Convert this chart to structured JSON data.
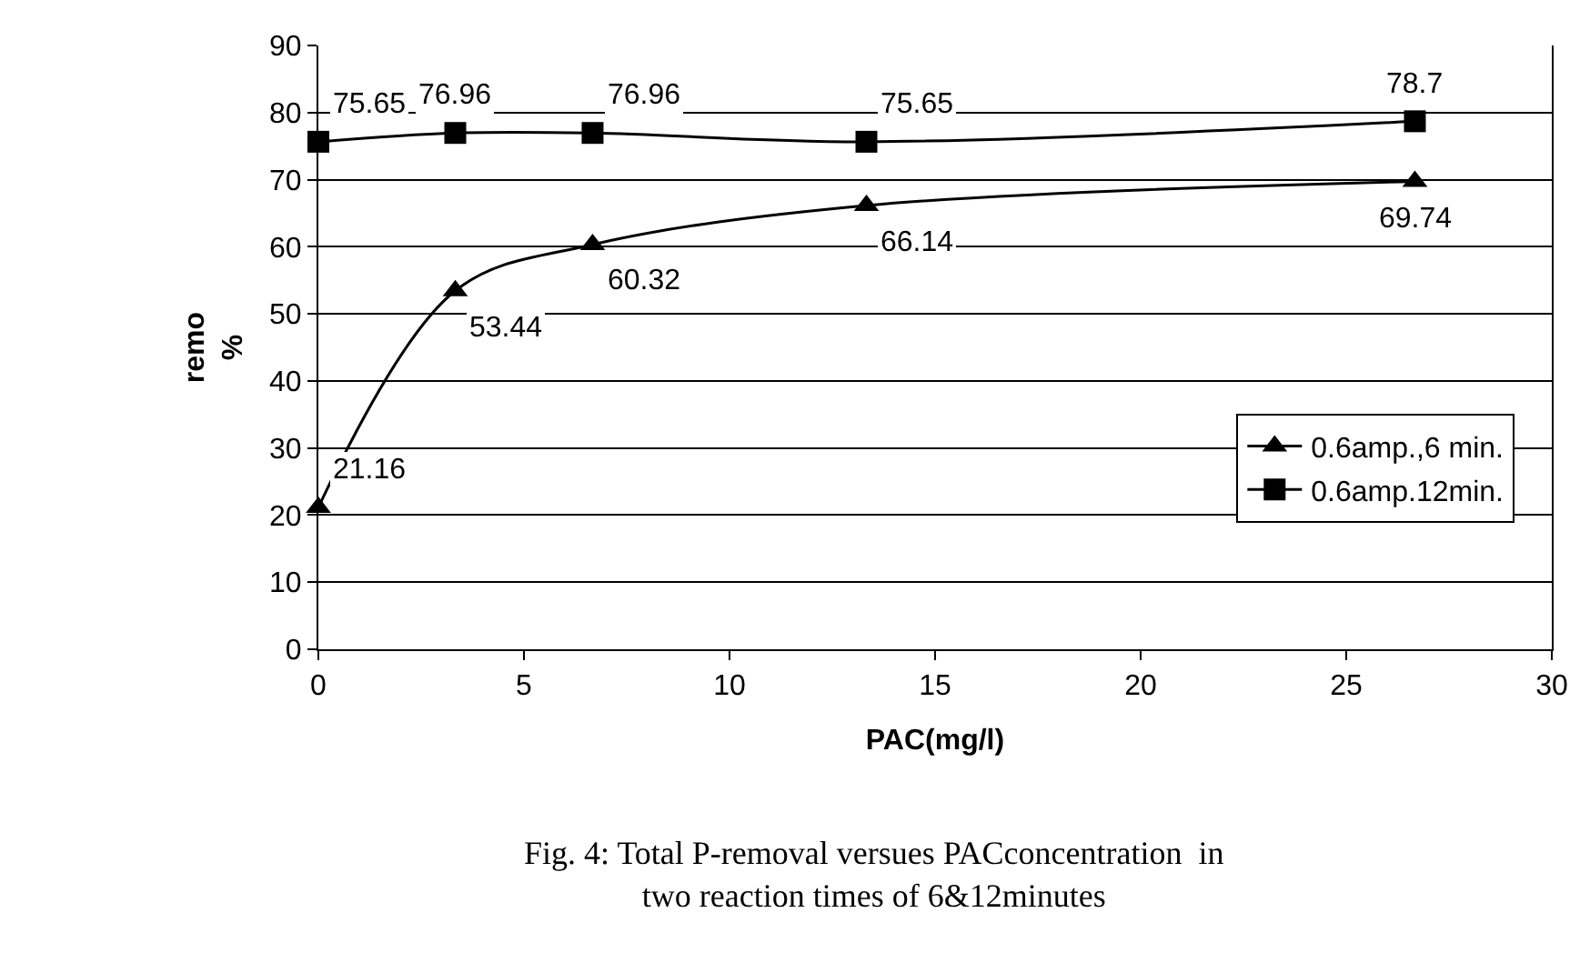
{
  "chart_data": {
    "type": "line",
    "xlabel": "PAC(mg/l)",
    "ylabel": "remo\n%",
    "xlim": [
      0,
      30
    ],
    "xticks": [
      0,
      5,
      10,
      15,
      20,
      25,
      30
    ],
    "ylim": [
      0,
      90
    ],
    "yticks": [
      0,
      10,
      20,
      30,
      40,
      50,
      60,
      70,
      80,
      90
    ],
    "grid": "y",
    "legend": "right",
    "line_style": "solid",
    "x": [
      0,
      3.33,
      6.67,
      13.33,
      26.67
    ],
    "series": [
      {
        "name": "0.6amp.,6 min.",
        "color": "#000000",
        "marker": "triangle",
        "values": [
          21.16,
          53.44,
          60.32,
          66.14,
          69.74
        ],
        "value_labels": [
          "21.16",
          "53.44",
          "60.32",
          "66.14",
          "69.74"
        ]
      },
      {
        "name": "0.6amp.12min.",
        "color": "#000000",
        "marker": "square",
        "values": [
          75.65,
          76.96,
          76.96,
          75.65,
          78.7
        ],
        "value_labels": [
          "75.65",
          "76.96",
          "76.96",
          "75.65",
          "78.7"
        ]
      }
    ],
    "annotations": [
      "Fig. 4: Total P-removal versues PACconcentration  in\ntwo reaction times of 6&12minutes"
    ]
  }
}
